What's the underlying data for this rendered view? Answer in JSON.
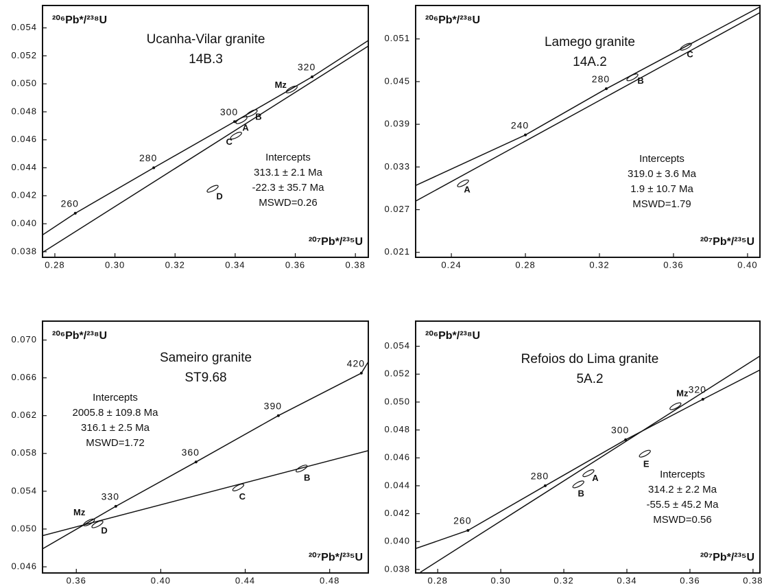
{
  "chart_data": [
    {
      "type": "concordia",
      "title": "Ucanha-Vilar granite",
      "subtitle": "14B.3",
      "x_label": "²⁰⁷Pb*/²³⁵U",
      "y_label": "²⁰⁶Pb*/²³⁸U",
      "xlim": [
        0.2759,
        0.3843
      ],
      "ylim": [
        0.0376,
        0.0556
      ],
      "xticks": [
        0.28,
        {
          "value": 0.3,
          "label": "0.30"
        },
        0.32,
        0.34,
        0.36,
        0.38
      ],
      "yticks": [
        0.038,
        {
          "value": 0.04,
          "label": "0.040"
        },
        0.042,
        0.044,
        0.046,
        0.048,
        {
          "value": 0.05,
          "label": "0.050"
        },
        0.052,
        0.054
      ],
      "concordia": {
        "x": [
          0.2759,
          0.2868,
          0.3129,
          0.3398,
          0.3656,
          0.3843
        ],
        "y": [
          0.0392,
          0.04075,
          0.044,
          0.0473,
          0.0505,
          0.0531
        ]
      },
      "discordia": {
        "x": [
          0.2759,
          0.3843
        ],
        "y": [
          0.03795,
          0.0527
        ]
      },
      "ages": [
        260,
        280,
        300,
        320
      ],
      "age_x": [
        0.2868,
        0.3129,
        0.3398,
        0.3656
      ],
      "age_y": [
        0.04075,
        0.044,
        0.0473,
        0.0505
      ],
      "ellipses": [
        {
          "label": "D",
          "x": 0.3325,
          "y": 0.0425
        },
        {
          "label": "C",
          "x": 0.3403,
          "y": 0.0463
        },
        {
          "label": "A",
          "x": 0.3421,
          "y": 0.0474
        },
        {
          "label": "B",
          "x": 0.3455,
          "y": 0.0479
        },
        {
          "label": "Mz",
          "x": 0.3588,
          "y": 0.0496
        }
      ],
      "intercepts": [
        "Intercepts",
        "313.1 ± 2.1 Ma",
        "-22.3 ± 35.7 Ma",
        "MSWD=0.26"
      ]
    },
    {
      "type": "concordia",
      "title": "Lamego granite",
      "subtitle": "14A.2",
      "x_label": "²⁰⁷Pb*/²³⁵U",
      "y_label": "²⁰⁶Pb*/²³⁸U",
      "xlim": [
        0.2207,
        0.4067
      ],
      "ylim": [
        0.0203,
        0.0557
      ],
      "xticks": [
        0.24,
        0.28,
        0.32,
        0.36,
        {
          "value": 0.4,
          "label": "0.40"
        }
      ],
      "yticks": [
        0.021,
        0.027,
        0.033,
        0.039,
        0.045,
        0.051
      ],
      "concordia": {
        "x": [
          0.2207,
          0.28,
          0.3237,
          0.4067
        ],
        "y": [
          0.0304,
          0.0375,
          0.044,
          0.0555
        ]
      },
      "discordia": {
        "x": [
          0.2207,
          0.4067
        ],
        "y": [
          0.0282,
          0.0547
        ]
      },
      "ages": [
        240,
        280
      ],
      "age_x": [
        0.28,
        0.3237
      ],
      "age_y": [
        0.0375,
        0.044
      ],
      "ellipses": [
        {
          "label": "A",
          "x": 0.2463,
          "y": 0.0307
        },
        {
          "label": "B",
          "x": 0.3378,
          "y": 0.0456
        },
        {
          "label": "C",
          "x": 0.3667,
          "y": 0.0499
        }
      ],
      "intercepts": [
        "Intercepts",
        "319.0 ± 3.6 Ma",
        "1.9 ± 10.7 Ma",
        "MSWD=1.79"
      ]
    },
    {
      "type": "concordia",
      "title": "Sameiro granite",
      "subtitle": "ST9.68",
      "x_label": "²⁰⁷Pb*/²³⁵U",
      "y_label": "²⁰⁶Pb*/²³⁸U",
      "xlim": [
        0.344,
        0.4983
      ],
      "ylim": [
        0.04535,
        0.072
      ],
      "xticks": [
        0.36,
        {
          "value": 0.4,
          "label": "0.40"
        },
        0.44,
        0.48
      ],
      "yticks": [
        0.046,
        {
          "value": 0.05,
          "label": "0.050"
        },
        0.054,
        0.058,
        0.062,
        0.066,
        {
          "value": 0.07,
          "label": "0.070"
        }
      ],
      "concordia": {
        "x": [
          0.344,
          0.3787,
          0.4167,
          0.4557,
          0.495,
          0.4983
        ],
        "y": [
          0.0479,
          0.0524,
          0.0571,
          0.062,
          0.0665,
          0.0677
        ]
      },
      "discordia": {
        "x": [
          0.344,
          0.4983
        ],
        "y": [
          0.0493,
          0.0583
        ]
      },
      "ages": [
        330,
        360,
        390,
        420
      ],
      "age_x": [
        0.3787,
        0.4167,
        0.4557,
        0.495
      ],
      "age_y": [
        0.0524,
        0.0571,
        0.062,
        0.0665
      ],
      "ellipses": [
        {
          "label": "Mz",
          "x": 0.366,
          "y": 0.0507
        },
        {
          "label": "D",
          "x": 0.37,
          "y": 0.0505
        },
        {
          "label": "C",
          "x": 0.4367,
          "y": 0.0544
        },
        {
          "label": "B",
          "x": 0.4667,
          "y": 0.0564
        }
      ],
      "intercepts": [
        "Intercepts",
        "2005.8 ± 109.8 Ma",
        "316.1 ± 2.5 Ma",
        "MSWD=1.72"
      ]
    },
    {
      "type": "concordia",
      "title": "Refoios do Lima granite",
      "subtitle": "5A.2",
      "x_label": "²⁰⁷Pb*/²³⁵U",
      "y_label": "²⁰⁶Pb*/²³⁸U",
      "xlim": [
        0.273,
        0.3822
      ],
      "ylim": [
        0.03775,
        0.0558
      ],
      "xticks": [
        0.28,
        {
          "value": 0.3,
          "label": "0.30"
        },
        0.32,
        0.34,
        0.36,
        0.38
      ],
      "yticks": [
        0.038,
        {
          "value": 0.04,
          "label": "0.040"
        },
        0.042,
        0.044,
        0.046,
        0.048,
        {
          "value": 0.05,
          "label": "0.050"
        },
        0.052,
        0.054
      ],
      "concordia": {
        "x": [
          0.273,
          0.2896,
          0.3141,
          0.3396,
          0.3641,
          0.3822
        ],
        "y": [
          0.0395,
          0.0408,
          0.044,
          0.0473,
          0.0502,
          0.0523
        ]
      },
      "discordia": {
        "x": [
          0.2745,
          0.3822
        ],
        "y": [
          0.0378,
          0.0533
        ]
      },
      "ages": [
        260,
        280,
        300,
        320
      ],
      "age_x": [
        0.2896,
        0.3141,
        0.3396,
        0.3641
      ],
      "age_y": [
        0.0408,
        0.044,
        0.0473,
        0.0502
      ],
      "ellipses": [
        {
          "label": "B",
          "x": 0.3246,
          "y": 0.0441
        },
        {
          "label": "A",
          "x": 0.3278,
          "y": 0.0449
        },
        {
          "label": "E",
          "x": 0.3457,
          "y": 0.0463
        },
        {
          "label": "Mz",
          "x": 0.3554,
          "y": 0.0497
        }
      ],
      "intercepts": [
        "Intercepts",
        "314.2 ± 2.2 Ma",
        "-55.5 ± 45.2 Ma",
        "MSWD=0.56"
      ]
    }
  ]
}
